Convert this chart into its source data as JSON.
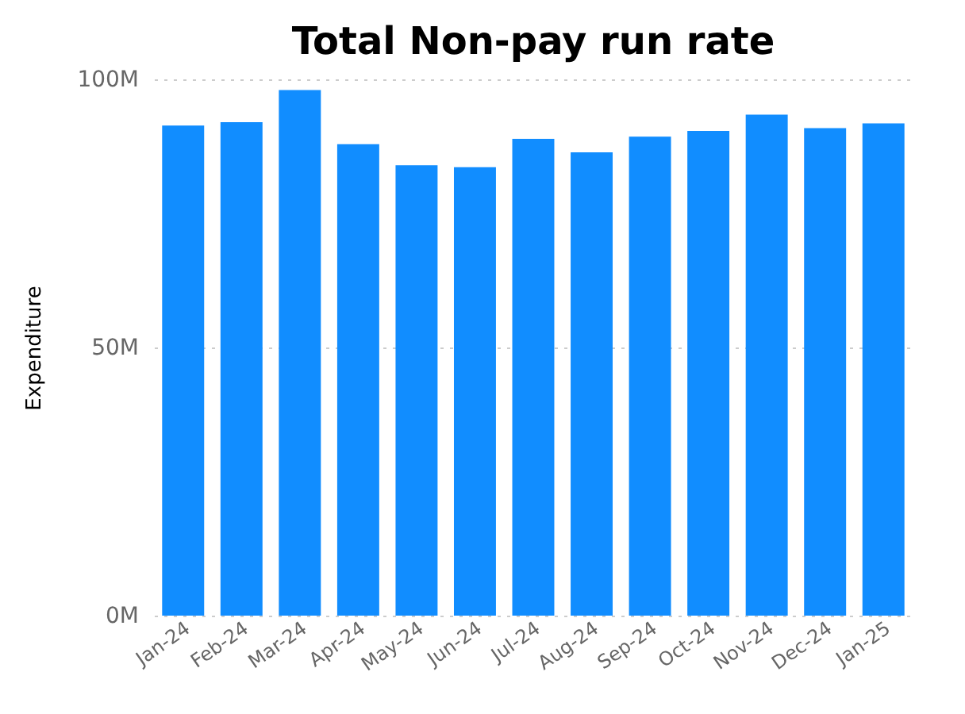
{
  "chart_data": {
    "type": "bar",
    "title": "Total Non-pay run rate",
    "ylabel": "Expenditure",
    "categories": [
      "Jan-24",
      "Feb-24",
      "Mar-24",
      "Apr-24",
      "May-24",
      "Jun-24",
      "Jul-24",
      "Aug-24",
      "Sep-24",
      "Oct-24",
      "Nov-24",
      "Dec-24",
      "Jan-25"
    ],
    "values": [
      91.4,
      92.0,
      98.0,
      87.9,
      84.0,
      83.6,
      88.9,
      86.4,
      89.3,
      90.4,
      93.4,
      90.9,
      91.8
    ],
    "color": "#118dff",
    "ylim": [
      0,
      100
    ],
    "yticks": [
      {
        "value": 0,
        "label": "0M"
      },
      {
        "value": 50,
        "label": "50M"
      },
      {
        "value": 100,
        "label": "100M"
      }
    ],
    "grid": "y"
  }
}
